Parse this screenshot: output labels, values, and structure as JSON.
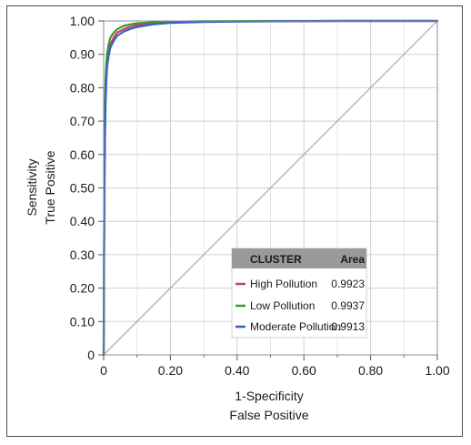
{
  "chart_data": {
    "type": "line",
    "title": "",
    "xlabel": [
      "1-Specificity",
      "False Positive"
    ],
    "ylabel": [
      "Sensitivity",
      "True Positive"
    ],
    "xlim": [
      0,
      1
    ],
    "ylim": [
      0,
      1
    ],
    "grid": true,
    "x_ticks": [
      "0",
      "0.20",
      "0.40",
      "0.60",
      "0.80",
      "1.00"
    ],
    "y_ticks": [
      "0",
      "0.10",
      "0.20",
      "0.30",
      "0.40",
      "0.50",
      "0.60",
      "0.70",
      "0.80",
      "0.90",
      "1.00"
    ],
    "reference_line": {
      "x": [
        0,
        1
      ],
      "y": [
        0,
        1
      ],
      "color": "#a8a8a8"
    },
    "legend": {
      "placement": "bottom-right",
      "header": [
        "CLUSTER",
        "Area"
      ]
    },
    "series": [
      {
        "name": "High Pollution",
        "area": "0.9923",
        "color": "#d23c5a",
        "x": [
          0,
          0.002,
          0.004,
          0.006,
          0.008,
          0.01,
          0.015,
          0.02,
          0.03,
          0.04,
          0.06,
          0.08,
          0.1,
          0.15,
          0.2,
          0.3,
          0.5,
          0.7,
          1.0
        ],
        "y": [
          0,
          0.5,
          0.7,
          0.8,
          0.85,
          0.88,
          0.91,
          0.93,
          0.95,
          0.965,
          0.975,
          0.983,
          0.988,
          0.993,
          0.996,
          0.998,
          0.999,
          1.0,
          1.0
        ]
      },
      {
        "name": "Low Pollution",
        "area": "0.9937",
        "color": "#2e9e2e",
        "x": [
          0,
          0.002,
          0.004,
          0.006,
          0.008,
          0.01,
          0.015,
          0.02,
          0.03,
          0.04,
          0.06,
          0.08,
          0.1,
          0.15,
          0.2,
          0.3,
          0.5,
          0.7,
          1.0
        ],
        "y": [
          0,
          0.55,
          0.74,
          0.83,
          0.87,
          0.9,
          0.93,
          0.95,
          0.965,
          0.975,
          0.985,
          0.99,
          0.993,
          0.996,
          0.998,
          0.999,
          1.0,
          1.0,
          1.0
        ]
      },
      {
        "name": "Moderate Pollution",
        "area": "0.9913",
        "color": "#3a5fcd",
        "x": [
          0,
          0.002,
          0.004,
          0.006,
          0.008,
          0.01,
          0.015,
          0.02,
          0.03,
          0.04,
          0.06,
          0.08,
          0.1,
          0.15,
          0.2,
          0.3,
          0.5,
          0.7,
          1.0
        ],
        "y": [
          0,
          0.45,
          0.65,
          0.76,
          0.82,
          0.86,
          0.895,
          0.92,
          0.94,
          0.955,
          0.968,
          0.976,
          0.982,
          0.99,
          0.994,
          0.997,
          0.999,
          1.0,
          1.0
        ]
      }
    ]
  }
}
